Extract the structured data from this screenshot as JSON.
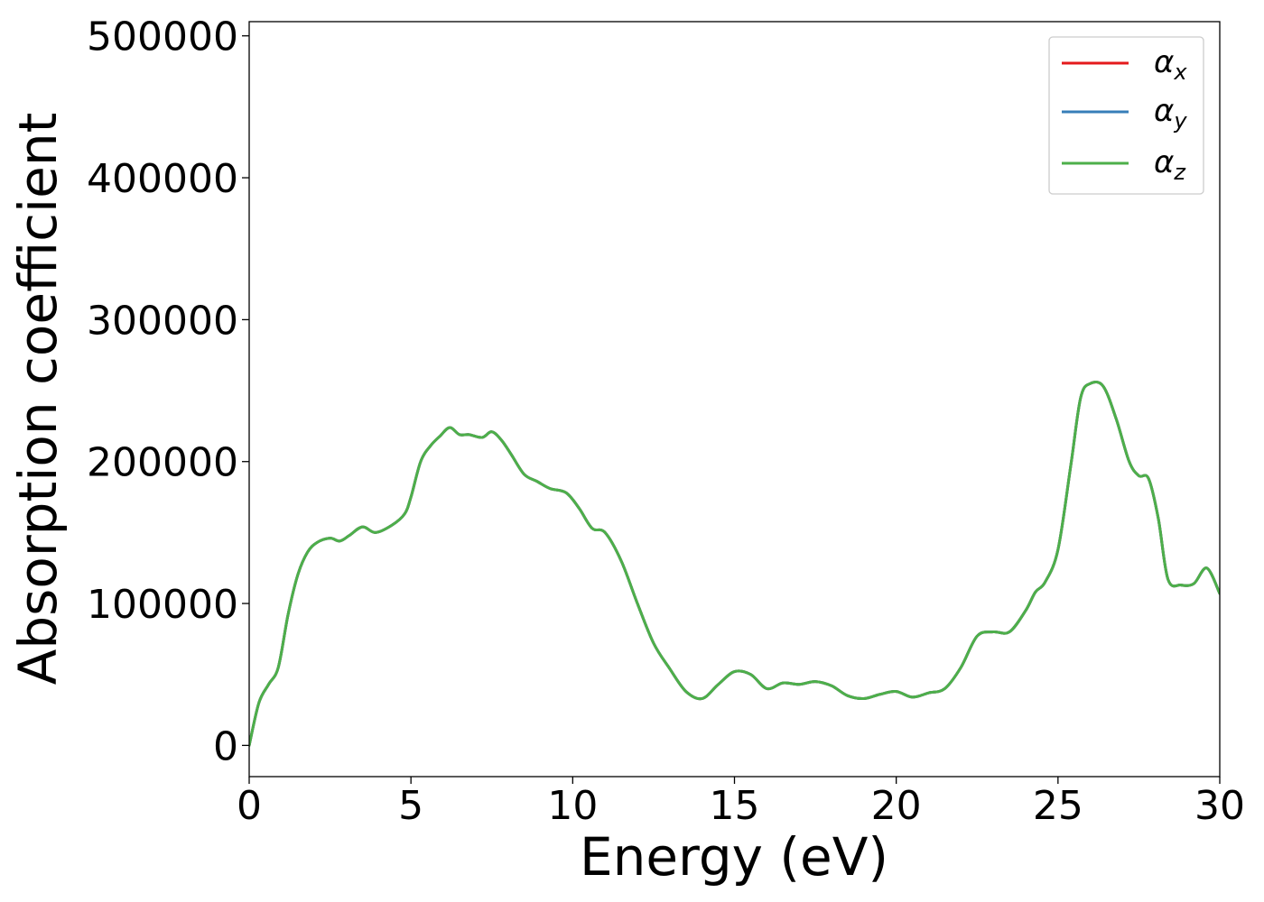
{
  "chart_data": {
    "type": "line",
    "xlabel": "Energy (eV)",
    "ylabel": "Absorption coefficient",
    "xlim": [
      0,
      30
    ],
    "ylim": [
      -22000,
      510000
    ],
    "xticks": [
      0,
      5,
      10,
      15,
      20,
      25,
      30
    ],
    "yticks": [
      0,
      100000,
      200000,
      300000,
      400000,
      500000
    ],
    "grid": false,
    "legend_position": "top-right",
    "x": [
      0,
      0.3,
      0.6,
      0.9,
      1.2,
      1.5,
      1.8,
      2.1,
      2.5,
      2.8,
      3.1,
      3.5,
      3.9,
      4.4,
      4.8,
      5.0,
      5.3,
      5.6,
      5.9,
      6.2,
      6.5,
      6.8,
      7.2,
      7.5,
      7.8,
      8.1,
      8.5,
      8.9,
      9.3,
      9.8,
      10.2,
      10.6,
      11.0,
      11.5,
      12.0,
      12.5,
      13.0,
      13.5,
      14.0,
      14.5,
      15.0,
      15.5,
      16.0,
      16.5,
      17.0,
      17.5,
      18.0,
      18.5,
      19.0,
      19.5,
      20.0,
      20.5,
      21.0,
      21.5,
      22.0,
      22.5,
      23.0,
      23.5,
      24.0,
      24.3,
      24.6,
      25.0,
      25.4,
      25.7,
      26.0,
      26.4,
      26.8,
      27.2,
      27.5,
      27.8,
      28.1,
      28.4,
      28.8,
      29.2,
      29.6,
      30.0
    ],
    "series": [
      {
        "name": "α_x",
        "color": "#e41a1c",
        "values": [
          0,
          30000,
          43000,
          55000,
          92000,
          120000,
          136000,
          143000,
          146000,
          144000,
          148000,
          154000,
          150000,
          155000,
          163000,
          175000,
          200000,
          211000,
          218000,
          224000,
          219000,
          219000,
          217000,
          221000,
          215000,
          205000,
          191000,
          186000,
          181000,
          178000,
          167000,
          153000,
          150000,
          130000,
          100000,
          72000,
          54000,
          38000,
          33000,
          43000,
          52000,
          50000,
          40000,
          44000,
          43000,
          45000,
          42000,
          35000,
          33000,
          36000,
          38000,
          34000,
          37000,
          40000,
          55000,
          77000,
          80000,
          80000,
          95000,
          108000,
          115000,
          138000,
          198000,
          245000,
          255000,
          253000,
          230000,
          200000,
          190000,
          188000,
          160000,
          117000,
          113000,
          114000,
          125000,
          107000
        ]
      },
      {
        "name": "α_y",
        "color": "#377eb8",
        "values": [
          0,
          30000,
          43000,
          55000,
          92000,
          120000,
          136000,
          143000,
          146000,
          144000,
          148000,
          154000,
          150000,
          155000,
          163000,
          175000,
          200000,
          211000,
          218000,
          224000,
          219000,
          219000,
          217000,
          221000,
          215000,
          205000,
          191000,
          186000,
          181000,
          178000,
          167000,
          153000,
          150000,
          130000,
          100000,
          72000,
          54000,
          38000,
          33000,
          43000,
          52000,
          50000,
          40000,
          44000,
          43000,
          45000,
          42000,
          35000,
          33000,
          36000,
          38000,
          34000,
          37000,
          40000,
          55000,
          77000,
          80000,
          80000,
          95000,
          108000,
          115000,
          138000,
          198000,
          245000,
          255000,
          253000,
          230000,
          200000,
          190000,
          188000,
          160000,
          117000,
          113000,
          114000,
          125000,
          107000
        ]
      },
      {
        "name": "α_z",
        "color": "#4daf4a",
        "values": [
          0,
          30000,
          43000,
          55000,
          92000,
          120000,
          136000,
          143000,
          146000,
          144000,
          148000,
          154000,
          150000,
          155000,
          163000,
          175000,
          200000,
          211000,
          218000,
          224000,
          219000,
          219000,
          217000,
          221000,
          215000,
          205000,
          191000,
          186000,
          181000,
          178000,
          167000,
          153000,
          150000,
          130000,
          100000,
          72000,
          54000,
          38000,
          33000,
          43000,
          52000,
          50000,
          40000,
          44000,
          43000,
          45000,
          42000,
          35000,
          33000,
          36000,
          38000,
          34000,
          37000,
          40000,
          55000,
          77000,
          80000,
          80000,
          95000,
          108000,
          115000,
          138000,
          198000,
          245000,
          255000,
          253000,
          230000,
          200000,
          190000,
          188000,
          160000,
          117000,
          113000,
          114000,
          125000,
          107000
        ]
      }
    ],
    "legend": [
      {
        "base": "α",
        "sub": "x"
      },
      {
        "base": "α",
        "sub": "y"
      },
      {
        "base": "α",
        "sub": "z"
      }
    ],
    "xtick_labels": [
      "0",
      "5",
      "10",
      "15",
      "20",
      "25",
      "30"
    ],
    "ytick_labels": [
      "0",
      "100000",
      "200000",
      "300000",
      "400000",
      "500000"
    ]
  }
}
